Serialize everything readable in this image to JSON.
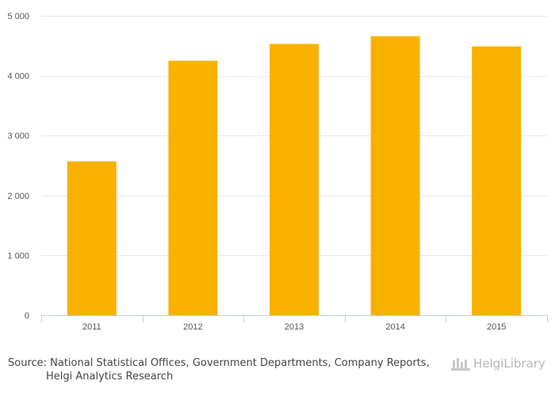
{
  "chart_data": {
    "type": "bar",
    "categories": [
      "2011",
      "2012",
      "2013",
      "2014",
      "2015"
    ],
    "values": [
      2570,
      4250,
      4530,
      4660,
      4490
    ],
    "ylim": [
      0,
      5000
    ],
    "yticks": [
      0,
      1000,
      2000,
      3000,
      4000,
      5000
    ],
    "ytick_labels": [
      "0",
      "1 000",
      "2 000",
      "3 000",
      "4 000",
      "5 000"
    ],
    "title": "",
    "xlabel": "",
    "ylabel": "",
    "grid": true,
    "bar_color": "#f9b100",
    "grid_color": "#e6e6e6"
  },
  "footer": {
    "source_line1": "Source: National Statistical Offices, Government Departments, Company Reports,",
    "source_line2": "Helgi Analytics Research",
    "logo_text": "HelgiLibrary"
  }
}
